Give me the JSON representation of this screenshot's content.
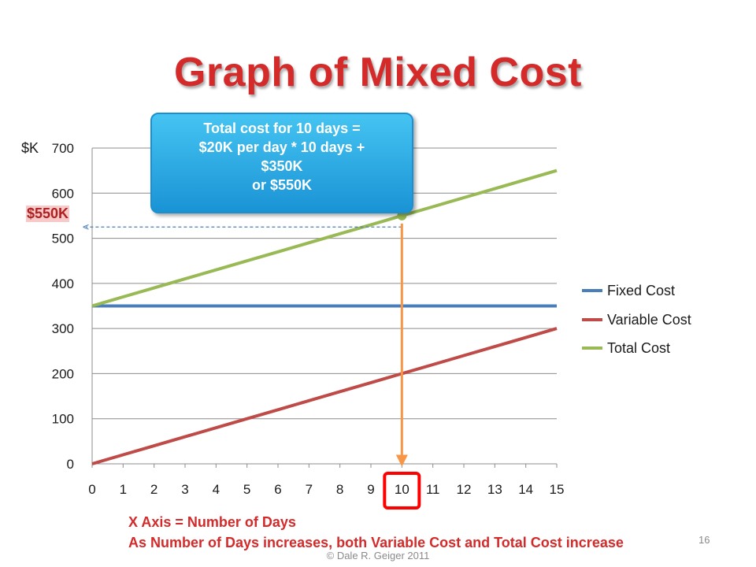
{
  "slide": {
    "title": "Graph of Mixed Cost",
    "callout_lines": [
      "Total  cost for 10 days =",
      "$20K per day * 10 days +",
      "$350K",
      "or $550K"
    ],
    "unit_label": "$K",
    "highlight_label": "$550K",
    "xaxis_note_1": "X Axis = Number of Days",
    "xaxis_note_2": "As Number of Days increases, both Variable Cost and Total Cost increase",
    "page_number": "16",
    "footer": "© Dale R. Geiger 2011"
  },
  "colors": {
    "title": "#d42a2a",
    "fixed": "#4a7ebb",
    "variable": "#be4b48",
    "total": "#98b954",
    "arrow": "#f79646",
    "callout": "#2aa6e0",
    "highlight_box": "#ff0000"
  },
  "chart_data": {
    "type": "line",
    "title": "",
    "xlabel": "",
    "ylabel": "$K",
    "x": [
      0,
      1,
      2,
      3,
      4,
      5,
      6,
      7,
      8,
      9,
      10,
      11,
      12,
      13,
      14,
      15
    ],
    "xlim": [
      0,
      15
    ],
    "ylim": [
      0,
      700
    ],
    "yticks": [
      0,
      100,
      200,
      300,
      400,
      500,
      600,
      700
    ],
    "series": [
      {
        "name": "Fixed Cost",
        "color": "#4a7ebb",
        "values": [
          350,
          350,
          350,
          350,
          350,
          350,
          350,
          350,
          350,
          350,
          350,
          350,
          350,
          350,
          350,
          350
        ]
      },
      {
        "name": "Variable Cost",
        "color": "#be4b48",
        "values": [
          0,
          20,
          40,
          60,
          80,
          100,
          120,
          140,
          160,
          180,
          200,
          220,
          240,
          260,
          280,
          300
        ]
      },
      {
        "name": "Total Cost",
        "color": "#98b954",
        "values": [
          350,
          370,
          390,
          410,
          430,
          450,
          470,
          490,
          510,
          530,
          550,
          570,
          590,
          610,
          630,
          650
        ]
      }
    ],
    "highlight": {
      "x": 10,
      "y": 550
    },
    "grid": true,
    "legend": "right"
  }
}
